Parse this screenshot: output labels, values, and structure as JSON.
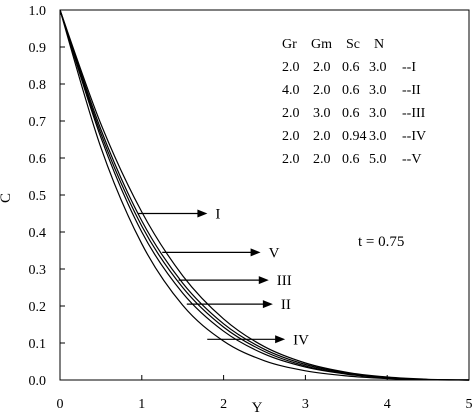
{
  "chart_data": {
    "type": "line",
    "xlabel": "Y",
    "ylabel": "C",
    "xlim": [
      0,
      5
    ],
    "ylim": [
      0,
      1
    ],
    "x_ticks": [
      "0",
      "1",
      "2",
      "3",
      "4",
      "5"
    ],
    "y_ticks": [
      "0.0",
      "0.1",
      "0.2",
      "0.3",
      "0.4",
      "0.5",
      "0.6",
      "0.7",
      "0.8",
      "0.9",
      "1.0"
    ],
    "grid": false,
    "legend_header": [
      "Gr",
      "Gm",
      "Sc",
      "N"
    ],
    "legend_rows": [
      [
        "2.0",
        "2.0",
        "0.6",
        "3.0",
        "--I"
      ],
      [
        "4.0",
        "2.0",
        "0.6",
        "3.0",
        "--II"
      ],
      [
        "2.0",
        "3.0",
        "0.6",
        "3.0",
        "--III"
      ],
      [
        "2.0",
        "2.0",
        "0.94",
        "3.0",
        "--IV"
      ],
      [
        "2.0",
        "2.0",
        "0.6",
        "5.0",
        "--V"
      ]
    ],
    "annotation": "t = 0.75",
    "series": [
      {
        "name": "I",
        "label_pos": [
          1.9,
          0.45
        ],
        "arrow_from": [
          0.95,
          0.45
        ],
        "x": [
          0,
          0.5,
          1,
          1.5,
          2,
          2.5,
          3,
          3.5,
          4,
          4.5,
          5
        ],
        "y": [
          1.0,
          0.692,
          0.454,
          0.282,
          0.165,
          0.09,
          0.046,
          0.021,
          0.008,
          0.002,
          0.0
        ]
      },
      {
        "name": "II",
        "label_pos": [
          2.7,
          0.205
        ],
        "arrow_from": [
          1.55,
          0.205
        ],
        "x": [
          0,
          0.5,
          1,
          1.5,
          2,
          2.5,
          3,
          3.5,
          4,
          4.5,
          5
        ],
        "y": [
          1.0,
          0.655,
          0.4,
          0.235,
          0.132,
          0.07,
          0.035,
          0.016,
          0.006,
          0.001,
          0.0
        ]
      },
      {
        "name": "III",
        "label_pos": [
          2.65,
          0.27
        ],
        "arrow_from": [
          1.45,
          0.27
        ],
        "x": [
          0,
          0.5,
          1,
          1.5,
          2,
          2.5,
          3,
          3.5,
          4,
          4.5,
          5
        ],
        "y": [
          1.0,
          0.666,
          0.416,
          0.25,
          0.143,
          0.077,
          0.038,
          0.017,
          0.006,
          0.001,
          0.0
        ]
      },
      {
        "name": "IV",
        "label_pos": [
          2.85,
          0.11
        ],
        "arrow_from": [
          1.8,
          0.11
        ],
        "x": [
          0,
          0.5,
          1,
          1.5,
          2,
          2.5,
          3,
          3.5,
          4,
          4.5,
          5
        ],
        "y": [
          1.0,
          0.628,
          0.368,
          0.202,
          0.105,
          0.052,
          0.025,
          0.011,
          0.004,
          0.001,
          0.0
        ]
      },
      {
        "name": "V",
        "label_pos": [
          2.55,
          0.345
        ],
        "arrow_from": [
          1.25,
          0.345
        ],
        "x": [
          0,
          0.5,
          1,
          1.5,
          2,
          2.5,
          3,
          3.5,
          4,
          4.5,
          5
        ],
        "y": [
          1.0,
          0.677,
          0.43,
          0.262,
          0.152,
          0.083,
          0.042,
          0.019,
          0.007,
          0.001,
          0.0
        ]
      }
    ]
  }
}
